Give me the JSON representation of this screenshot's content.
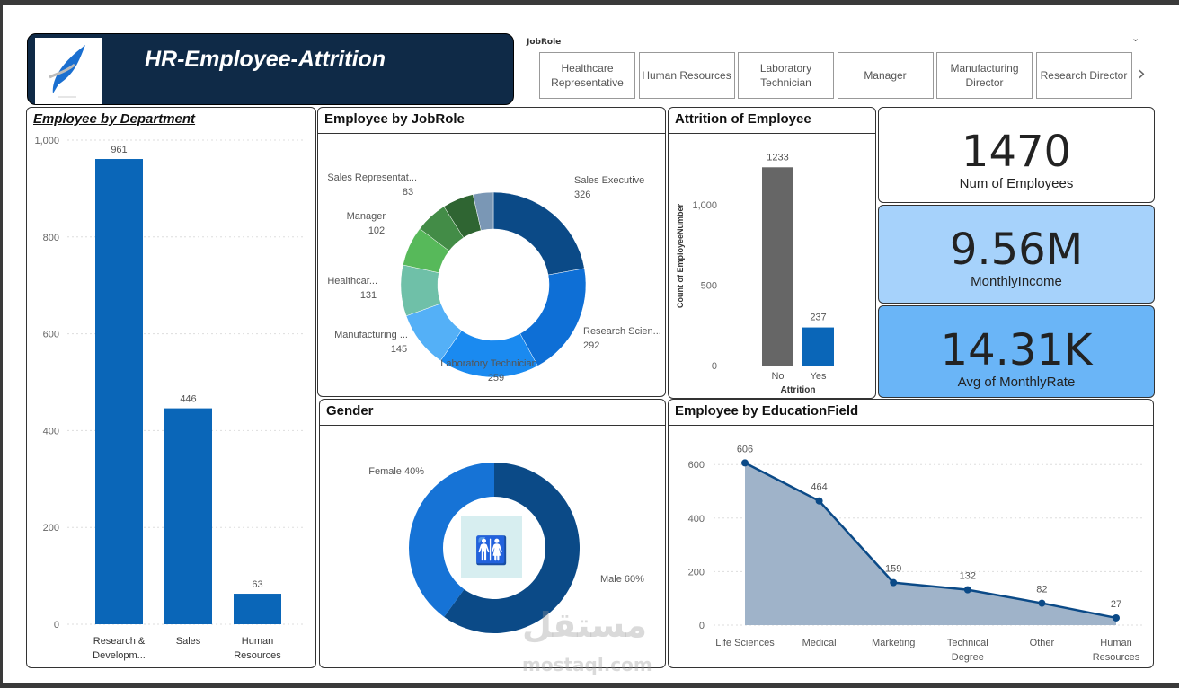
{
  "header": {
    "title": "HR-Employee-Attrition",
    "logo": "wing-logo"
  },
  "slicer": {
    "label": "JobRole",
    "buttons": [
      "Healthcare Representative",
      "Human Resources",
      "Laboratory Technician",
      "Manager",
      "Manufacturing Director",
      "Research Director"
    ]
  },
  "kpis": [
    {
      "value": "1470",
      "label": "Num of Employees",
      "color": "#ffffff"
    },
    {
      "value": "9.56M",
      "label": "MonthlyIncome",
      "color": "#a6d2fb"
    },
    {
      "value": "14.31K",
      "label": "Avg of MonthlyRate",
      "color": "#6ab5f7"
    }
  ],
  "watermark": {
    "text": "mostaql.com",
    "arabic": "مستقل"
  },
  "chart_data": [
    {
      "type": "bar",
      "title": "Employee by Department",
      "categories": [
        "Research & Developm...",
        "Sales",
        "Human Resources"
      ],
      "values": [
        961,
        446,
        63
      ],
      "ylim": [
        0,
        1000
      ],
      "yticks": [
        "0",
        "200",
        "400",
        "600",
        "800",
        "1,000"
      ],
      "grid": true,
      "color": "#0a66b8"
    },
    {
      "type": "pie",
      "title": "Employee by JobRole",
      "categories": [
        "Sales Executive",
        "Research Scien...",
        "Laboratory Technician",
        "Manufacturing ...",
        "Healthcar...",
        "Manager",
        "Sales Representat...",
        "",
        ""
      ],
      "values": [
        326,
        292,
        259,
        145,
        131,
        102,
        83,
        80,
        52
      ],
      "colors": [
        "#0b4a87",
        "#0e6fd6",
        "#1a8af0",
        "#54b0f7",
        "#6fc0a8",
        "#57b95a",
        "#438c47",
        "#2f6532",
        "#7a97b5"
      ]
    },
    {
      "type": "bar",
      "title": "Attrition of Employee",
      "xlabel": "Attrition",
      "ylabel": "Count of EmployeeNumber",
      "categories": [
        "No",
        "Yes"
      ],
      "values": [
        1233,
        237
      ],
      "ylim": [
        0,
        1400
      ],
      "yticks": [
        "0",
        "500",
        "1,000"
      ],
      "colors": [
        "#666666",
        "#0a66b8"
      ]
    },
    {
      "type": "pie",
      "title": "Gender",
      "categories": [
        "Male 60%",
        "Female 40%"
      ],
      "values": [
        60,
        40
      ],
      "colors": [
        "#0b4a87",
        "#1673d6"
      ]
    },
    {
      "type": "area",
      "title": "Employee by EducationField",
      "categories": [
        "Life Sciences",
        "Medical",
        "Marketing",
        "Technical Degree",
        "Other",
        "Human Resources"
      ],
      "values": [
        606,
        464,
        159,
        132,
        82,
        27
      ],
      "ylim": [
        0,
        650
      ],
      "yticks": [
        "0",
        "200",
        "400",
        "600"
      ],
      "grid": true,
      "color": "#0b4a87"
    }
  ]
}
